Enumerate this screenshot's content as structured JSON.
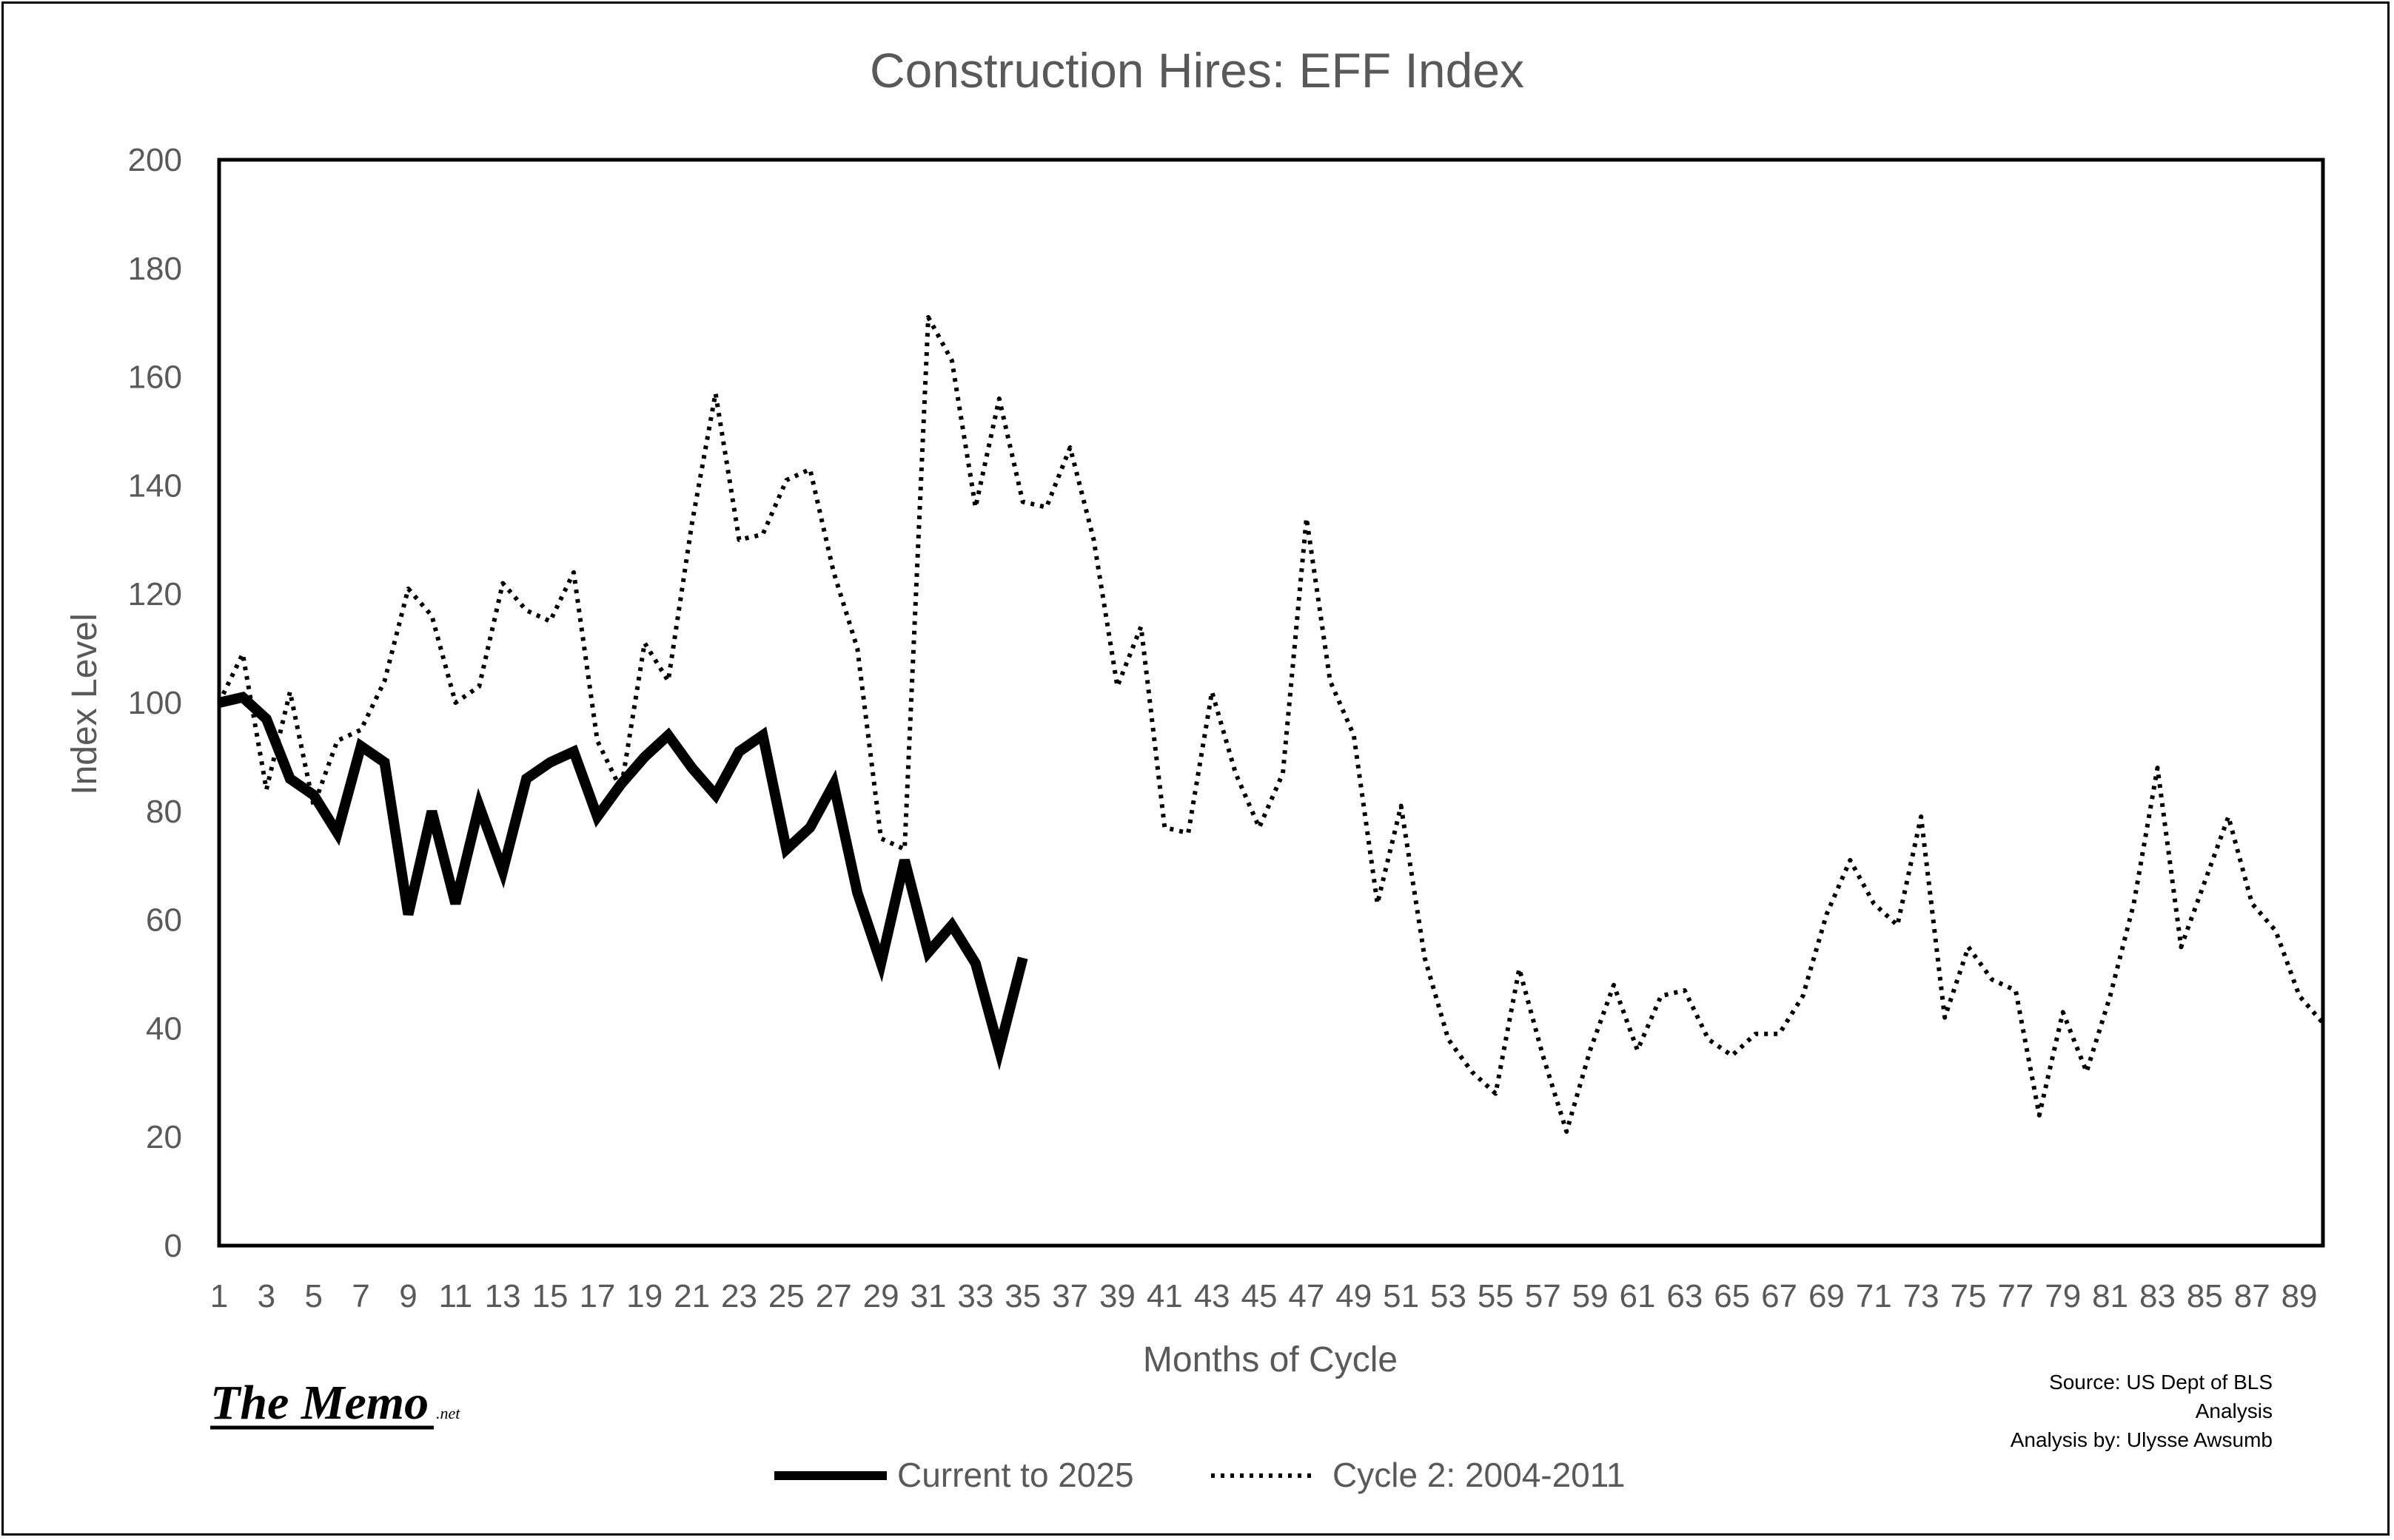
{
  "logo": {
    "main": "The Memo",
    "suffix": ".net"
  },
  "source": {
    "line1": "Source: US Dept of BLS",
    "line2": "Analysis",
    "line3": "Analysis by: Ulysse Awsumb"
  },
  "colors": {
    "current": "#000000",
    "cycle2": "#000000",
    "text": "#595959"
  },
  "chart_data": {
    "type": "line",
    "title": "Construction Hires: EFF Index",
    "xlabel": "Months of Cycle",
    "ylabel": "Index Level",
    "xlim": [
      1,
      89
    ],
    "ylim": [
      0,
      200
    ],
    "yticks": [
      0,
      20,
      40,
      60,
      80,
      100,
      120,
      140,
      160,
      180,
      200
    ],
    "xticks": [
      1,
      3,
      5,
      7,
      9,
      11,
      13,
      15,
      17,
      19,
      21,
      23,
      25,
      27,
      29,
      31,
      33,
      35,
      37,
      39,
      41,
      43,
      45,
      47,
      49,
      51,
      53,
      55,
      57,
      59,
      61,
      63,
      65,
      67,
      69,
      71,
      73,
      75,
      77,
      79,
      81,
      83,
      85,
      87,
      89
    ],
    "grid": false,
    "legend": "bottom",
    "series": [
      {
        "name": "Current to 2025",
        "style": "solid",
        "x": [
          1,
          2,
          3,
          4,
          5,
          6,
          7,
          8,
          9,
          10,
          11,
          12,
          13,
          14,
          15,
          16,
          17,
          18,
          19,
          20,
          21,
          22,
          23,
          24,
          25,
          26,
          27,
          28,
          29,
          30,
          31,
          32,
          33,
          34,
          35
        ],
        "values": [
          100,
          101,
          97,
          86,
          83,
          76,
          92,
          89,
          61,
          80,
          63,
          81,
          69,
          86,
          89,
          91,
          79,
          85,
          90,
          94,
          88,
          83,
          91,
          94,
          73,
          77,
          85,
          65,
          52,
          71,
          54,
          59,
          52,
          36,
          53
        ]
      },
      {
        "name": "Cycle 2: 2004-2011",
        "style": "dotted",
        "x": [
          1,
          2,
          3,
          4,
          5,
          6,
          7,
          8,
          9,
          10,
          11,
          12,
          13,
          14,
          15,
          16,
          17,
          18,
          19,
          20,
          21,
          22,
          23,
          24,
          25,
          26,
          27,
          28,
          29,
          30,
          31,
          32,
          33,
          34,
          35,
          36,
          37,
          38,
          39,
          40,
          41,
          42,
          43,
          44,
          45,
          46,
          47,
          48,
          49,
          50,
          51,
          52,
          53,
          54,
          55,
          56,
          57,
          58,
          59,
          60,
          61,
          62,
          63,
          64,
          65,
          66,
          67,
          68,
          69,
          70,
          71,
          72,
          73,
          74,
          75,
          76,
          77,
          78,
          79,
          80,
          81,
          82,
          83,
          84,
          85,
          86,
          87,
          88,
          89,
          90
        ],
        "values": [
          100,
          109,
          84,
          102,
          81,
          93,
          95,
          104,
          121,
          116,
          100,
          103,
          122,
          117,
          115,
          124,
          93,
          84,
          111,
          104,
          133,
          157,
          130,
          131,
          141,
          143,
          124,
          110,
          75,
          73,
          171,
          163,
          136,
          156,
          137,
          136,
          147,
          130,
          103,
          114,
          77,
          76,
          102,
          87,
          77,
          87,
          134,
          104,
          94,
          63,
          81,
          53,
          38,
          32,
          28,
          51,
          35,
          21,
          36,
          48,
          36,
          46,
          47,
          38,
          35,
          39,
          39,
          46,
          61,
          71,
          63,
          59,
          79,
          42,
          55,
          49,
          47,
          24,
          43,
          32,
          46,
          63,
          88,
          55,
          67,
          79,
          63,
          58,
          46,
          41
        ]
      }
    ]
  }
}
